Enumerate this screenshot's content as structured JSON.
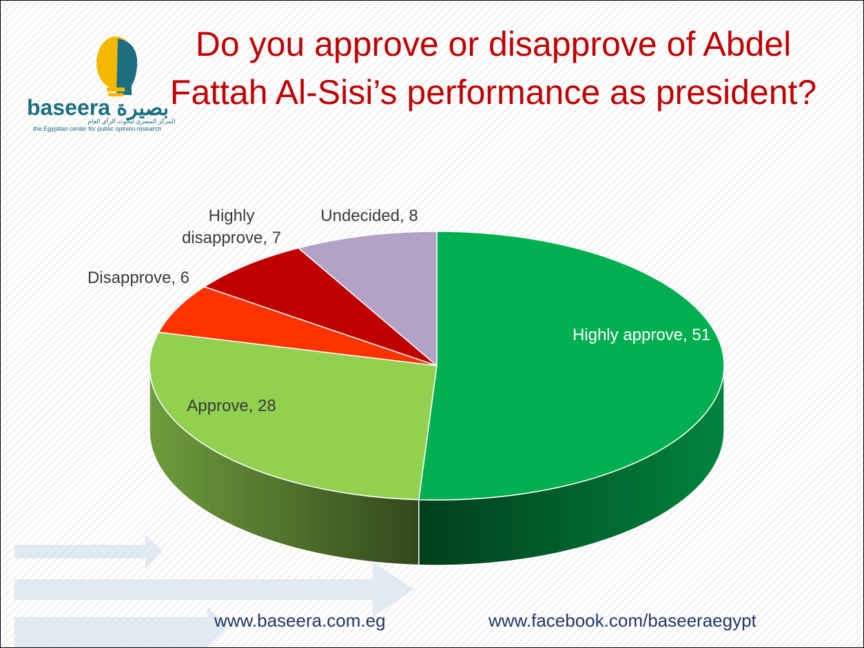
{
  "chart_data": {
    "type": "pie3d",
    "title": "Do you approve or disapprove of Abdel Fattah Al-Sisi’s performance as president?",
    "categories": [
      "Highly approve",
      "Approve",
      "Disapprove",
      "Highly disapprove",
      "Undecided"
    ],
    "values": [
      51,
      28,
      6,
      7,
      8
    ],
    "value_labels": [
      "Highly approve, 51",
      "Approve, 28",
      "Disapprove, 6",
      "Highly disapprove, 7",
      "Undecided, 8"
    ],
    "colors": [
      "#00b050",
      "#92d050",
      "#ff3300",
      "#c00000",
      "#b3a2c7"
    ]
  },
  "logo": {
    "name": "baseera",
    "arabic_name": "بصيرة",
    "arabic_tagline": "المركز المصري لبحوث الرأي العام",
    "tagline": "the Egyptian center for public opinion research"
  },
  "footer": {
    "website": "www.baseera.com.eg",
    "facebook": "www.facebook.com/baseeraegypt"
  }
}
